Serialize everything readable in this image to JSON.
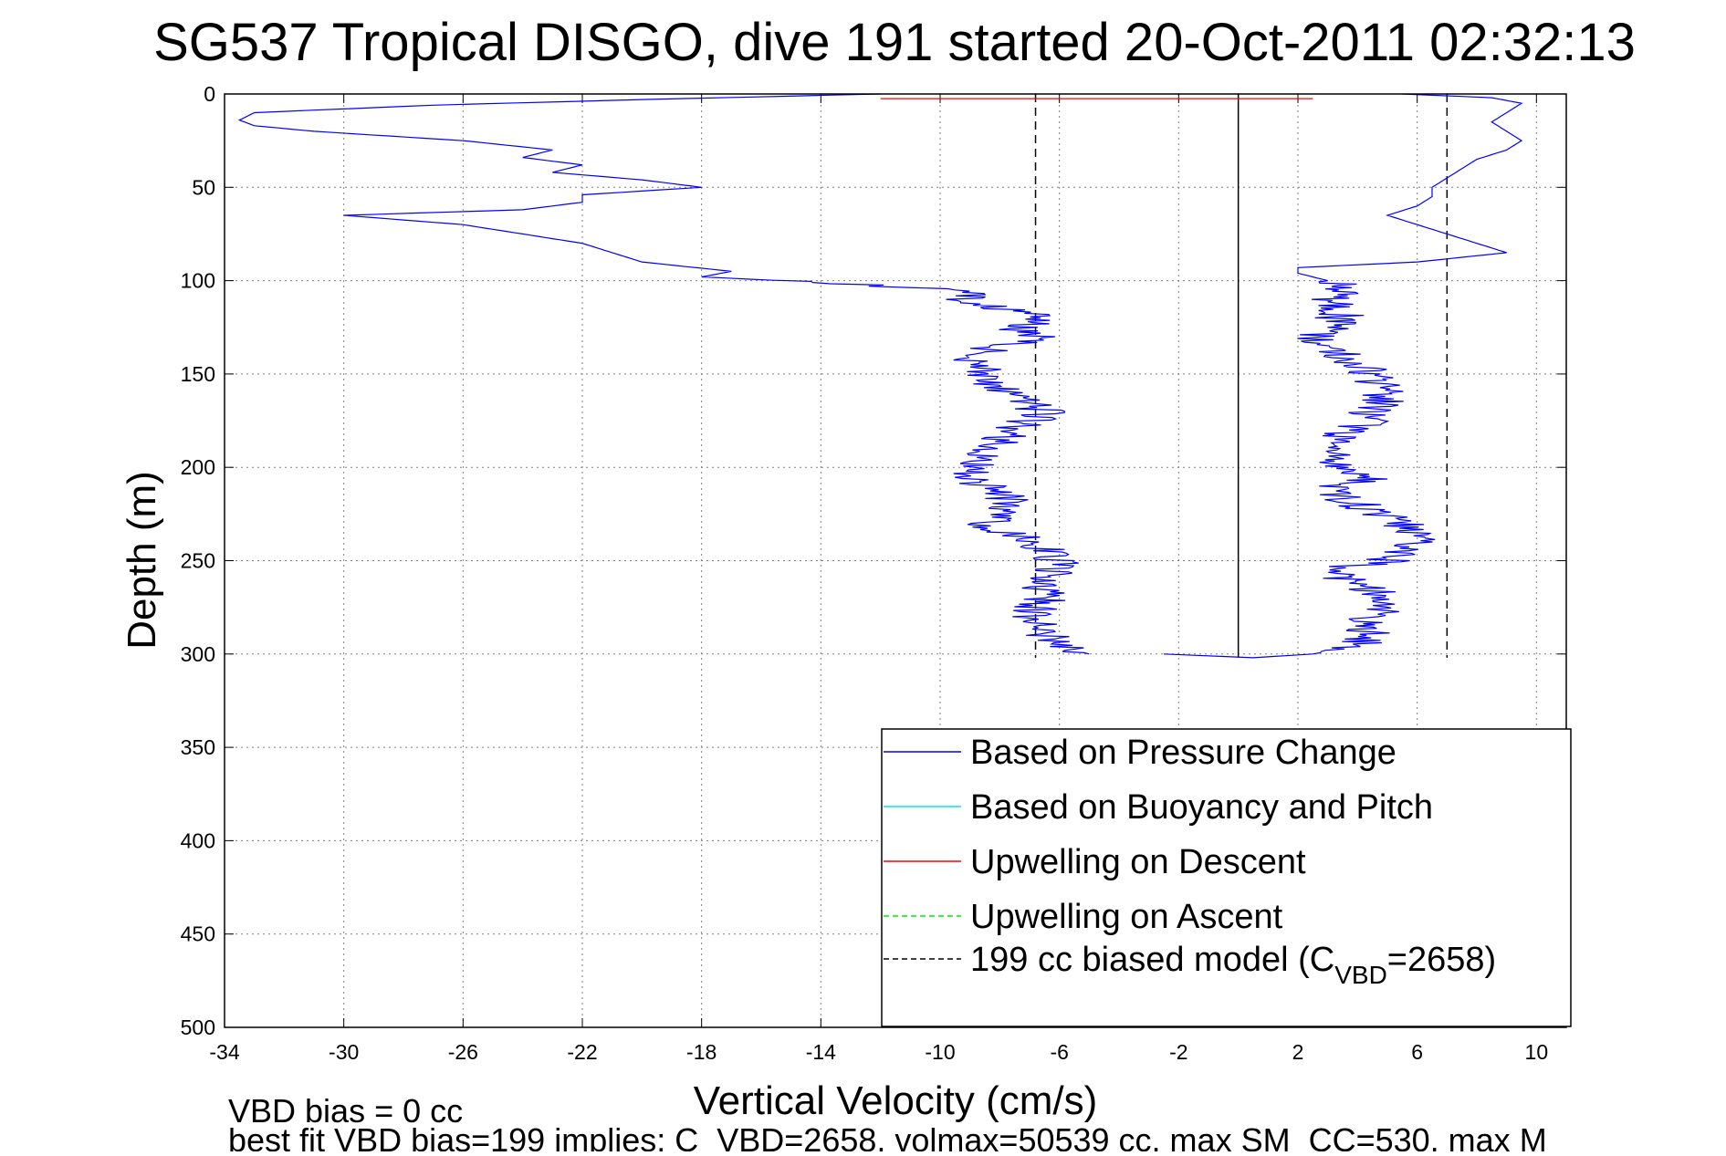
{
  "chart_data": {
    "type": "line",
    "title": "SG537 Tropical DISGO, dive 191 started 20-Oct-2011 02:32:13",
    "xlabel": "Vertical Velocity (cm/s)",
    "ylabel": "Depth (m)",
    "xlim": [
      -34,
      11
    ],
    "ylim": [
      0,
      500
    ],
    "y_reversed": true,
    "x_ticks": [
      -34,
      -30,
      -26,
      -22,
      -18,
      -14,
      -10,
      -6,
      -2,
      2,
      6,
      10
    ],
    "y_ticks": [
      0,
      50,
      100,
      150,
      200,
      250,
      300,
      350,
      400,
      450,
      500
    ],
    "grid": true,
    "legend_position": "bottom-right",
    "legend": [
      {
        "label": "Based on Pressure Change",
        "color": "#0000ff",
        "dash": "solid",
        "sub": ""
      },
      {
        "label": "Based on Buoyancy and Pitch",
        "color": "#00e5ee",
        "dash": "solid",
        "sub": ""
      },
      {
        "label": "Upwelling on Descent",
        "color": "#ff0000",
        "dash": "solid",
        "sub": ""
      },
      {
        "label": "Upwelling on Ascent",
        "color": "#00ee00",
        "dash": "dashed",
        "sub": ""
      },
      {
        "label": "199 cc biased model (C",
        "color": "#000000",
        "dash": "dashed",
        "sub": "VBD",
        "suffix": "=2658)"
      }
    ],
    "series": [
      {
        "name": "Based on Pressure Change (descent)",
        "color": "#0000ff",
        "depth": [
          0,
          3,
          6,
          10,
          14,
          17,
          20,
          25,
          30,
          34,
          38,
          42,
          46,
          50,
          54,
          58,
          62,
          65,
          70,
          75,
          80,
          85,
          90,
          95,
          98,
          101,
          105,
          110,
          115,
          120,
          125,
          130,
          135,
          140,
          145,
          150,
          160,
          170,
          180,
          190,
          200,
          210,
          220,
          230,
          240,
          250,
          260,
          270,
          280,
          290,
          296,
          300
        ],
        "velocity": [
          -12,
          -20,
          -27,
          -33,
          -33.5,
          -33,
          -31,
          -26,
          -23,
          -24,
          -22,
          -23,
          -20,
          -18,
          -22,
          -22,
          -24,
          -30,
          -26,
          -24,
          -22,
          -21,
          -20,
          -17,
          -18,
          -14,
          -9.5,
          -9,
          -8,
          -6.5,
          -7.5,
          -6.5,
          -8,
          -9,
          -8.5,
          -8.5,
          -8,
          -6.5,
          -7.5,
          -8.5,
          -9,
          -8.5,
          -7.5,
          -8.5,
          -7,
          -6,
          -6.5,
          -6.5,
          -7,
          -6.5,
          -6,
          -5
        ]
      },
      {
        "name": "Based on Pressure Change (ascent)",
        "color": "#0000ff",
        "depth": [
          300,
          302,
          300,
          296,
          290,
          285,
          280,
          270,
          262,
          255,
          250,
          240,
          230,
          220,
          212,
          205,
          200,
          190,
          185,
          180,
          170,
          160,
          150,
          145,
          140,
          133,
          125,
          118,
          110,
          105,
          100,
          96,
          93,
          90,
          85,
          80,
          75,
          70,
          65,
          60,
          55,
          50,
          45,
          40,
          35,
          30,
          25,
          20,
          15,
          10,
          5,
          2,
          0
        ],
        "velocity": [
          -2.5,
          0.5,
          2.5,
          4,
          4.5,
          4,
          4.5,
          5,
          4,
          3,
          5,
          6,
          5.5,
          4,
          3,
          4.5,
          3,
          3.5,
          3,
          4,
          4.5,
          5,
          4.5,
          4,
          3.5,
          2.5,
          3,
          3.5,
          3,
          3.5,
          3,
          2,
          2,
          6,
          9,
          8,
          7,
          6,
          5,
          6,
          6.5,
          6.5,
          7,
          7.5,
          8,
          9,
          9.5,
          9,
          8.5,
          9,
          9.5,
          8.5,
          5.5
        ]
      },
      {
        "name": "Upwelling on Descent",
        "color": "#ff0000",
        "depth": [
          2.5,
          2.5
        ],
        "velocity": [
          -12,
          2.5
        ]
      }
    ],
    "reference_lines": [
      {
        "orientation": "vertical",
        "x": -6.8,
        "style": "dashed",
        "color": "#000000"
      },
      {
        "orientation": "vertical",
        "x": 7,
        "style": "dashed",
        "color": "#000000"
      },
      {
        "orientation": "vertical",
        "x": 0,
        "style": "solid",
        "color": "#000000"
      }
    ]
  },
  "footer": {
    "line1": "VBD bias = 0 cc",
    "line2": "best fit VBD bias=199 implies: C_VBD=2658, volmax=50539 cc, max SM_CC=530, max M"
  }
}
